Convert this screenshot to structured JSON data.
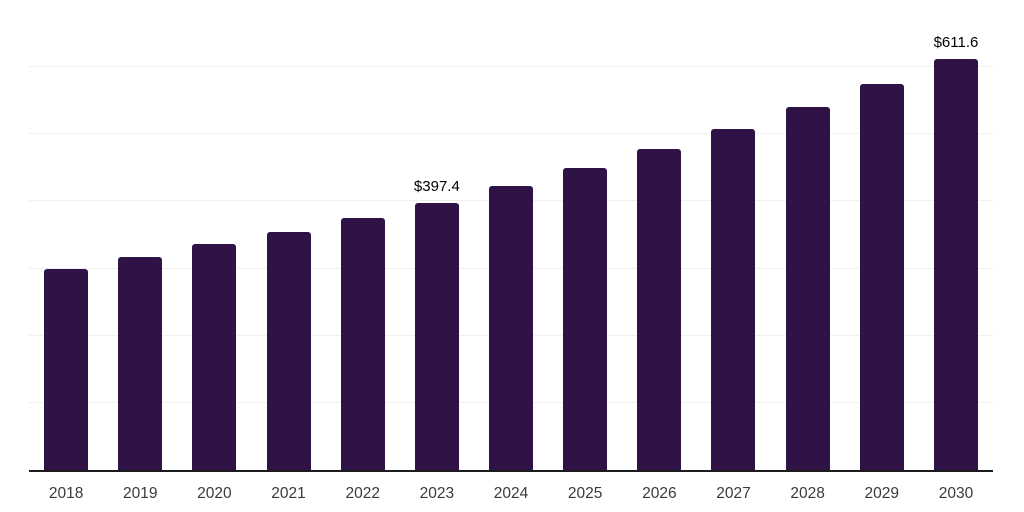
{
  "chart_data": {
    "type": "bar",
    "title": "",
    "xlabel": "",
    "ylabel": "",
    "categories": [
      "2018",
      "2019",
      "2020",
      "2021",
      "2022",
      "2023",
      "2024",
      "2025",
      "2026",
      "2027",
      "2028",
      "2029",
      "2030"
    ],
    "values": [
      300.0,
      317.0,
      336.0,
      355.0,
      376.0,
      397.4,
      422.6,
      449.5,
      478.0,
      508.4,
      540.7,
      575.0,
      611.6
    ],
    "data_labels": [
      "",
      "",
      "",
      "",
      "",
      "$397.4",
      "",
      "",
      "",
      "",
      "",
      "",
      "$611.6"
    ],
    "value_prefix": "$",
    "ylim": [
      0,
      700
    ],
    "gridline_interval": 100,
    "grid": "horizontal-only",
    "legend_position": "none",
    "colors": {
      "bar": "#2f1347",
      "gridline": "#f0f0f0",
      "axis_line": "#1c1c1c",
      "tick_label": "#3a3a3a",
      "value_label": "#000000",
      "background": "#ffffff"
    }
  }
}
